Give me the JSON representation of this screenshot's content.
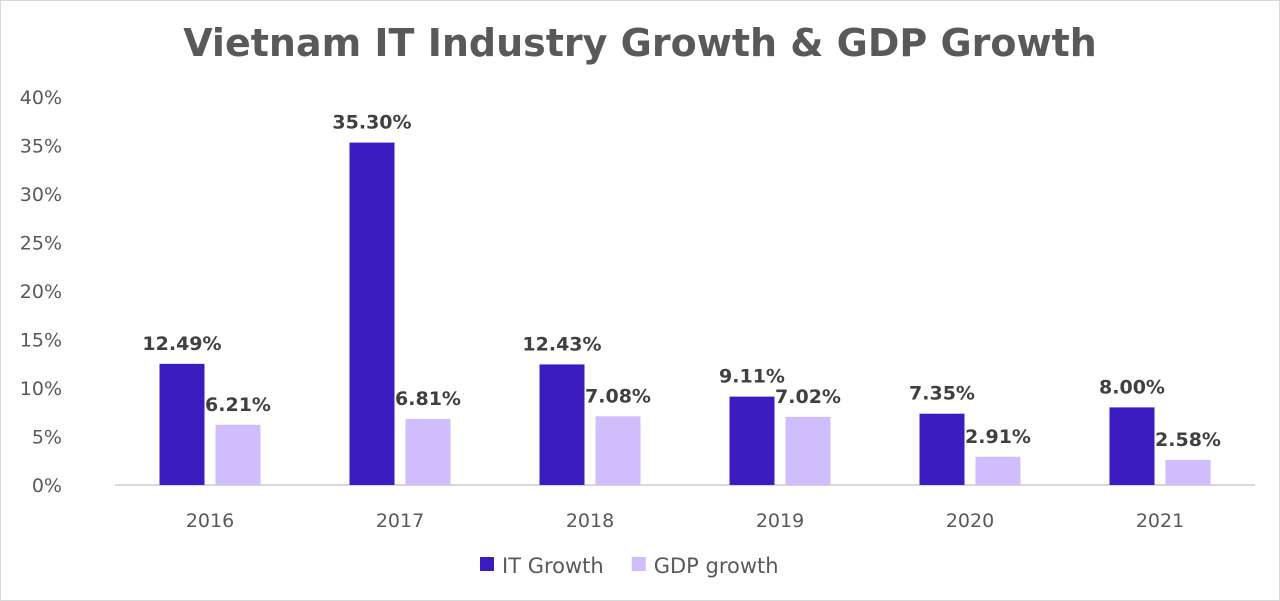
{
  "chart_data": {
    "type": "bar",
    "title": "Vietnam IT Industry Growth & GDP Growth",
    "categories": [
      "2016",
      "2017",
      "2018",
      "2019",
      "2020",
      "2021"
    ],
    "series": [
      {
        "name": "IT Growth",
        "values": [
          12.49,
          35.3,
          12.43,
          9.11,
          7.35,
          8.0
        ],
        "labels": [
          "12.49%",
          "35.30%",
          "12.43%",
          "9.11%",
          "7.35%",
          "8.00%"
        ],
        "color": "#3b1cc1"
      },
      {
        "name": "GDP growth",
        "values": [
          6.21,
          6.81,
          7.08,
          7.02,
          2.91,
          2.58
        ],
        "labels": [
          "6.21%",
          "6.81%",
          "7.08%",
          "7.02%",
          "2.91%",
          "2.58%"
        ],
        "color": "#d0bdfc"
      }
    ],
    "ylim": [
      0,
      40
    ],
    "yticks": [
      0,
      5,
      10,
      15,
      20,
      25,
      30,
      35,
      40
    ],
    "ytick_labels": [
      "0%",
      "5%",
      "10%",
      "15%",
      "20%",
      "25%",
      "30%",
      "35%",
      "40%"
    ],
    "grid": false,
    "legend_position": "bottom"
  }
}
